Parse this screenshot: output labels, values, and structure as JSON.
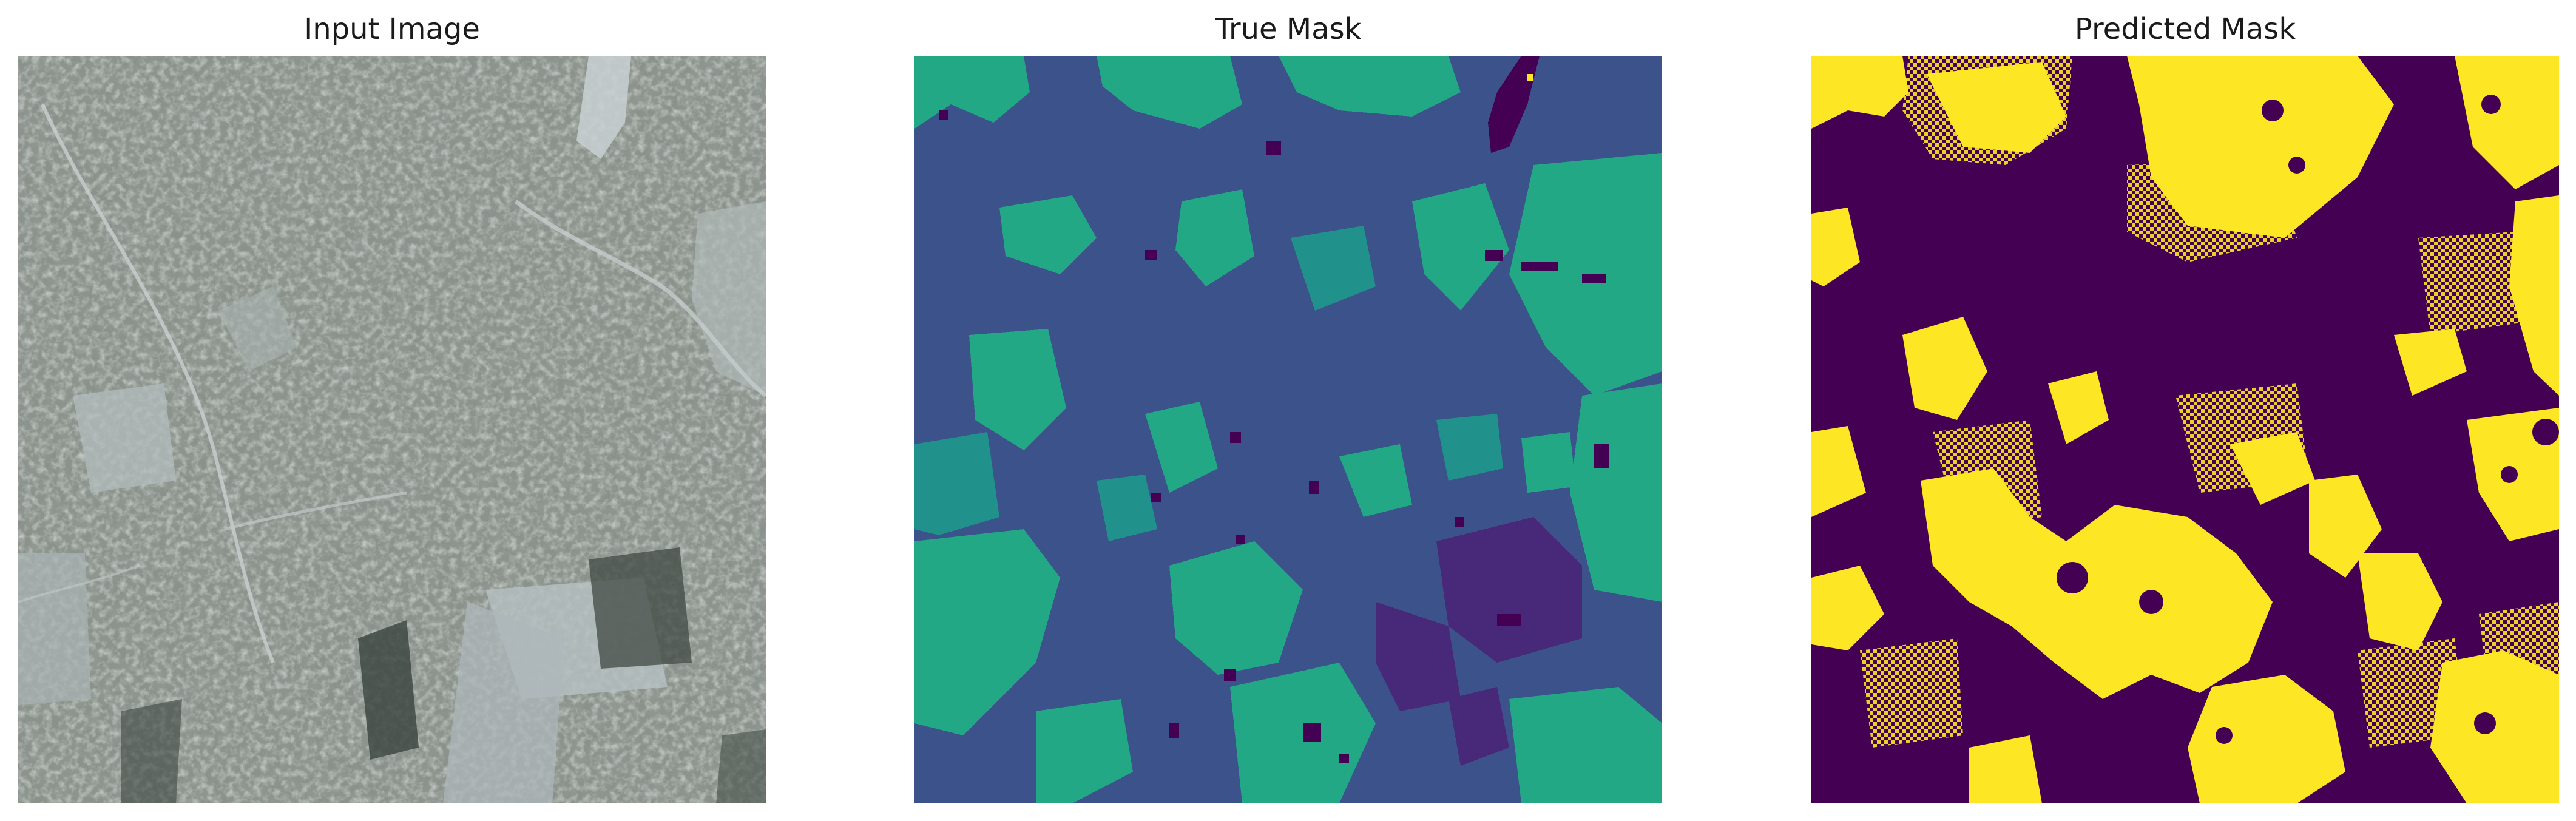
{
  "panels": [
    {
      "title": "Input Image"
    },
    {
      "title": "True Mask"
    },
    {
      "title": "Predicted Mask"
    }
  ],
  "colors": {
    "mask_dark_purple": "#440154",
    "mask_indigo": "#3b528b",
    "mask_teal": "#21918c",
    "mask_green": "#22a884",
    "mask_yellow": "#fde725",
    "input_base": "#8a918a",
    "input_dark": "#4a5248",
    "input_light": "#b9c2c2"
  }
}
